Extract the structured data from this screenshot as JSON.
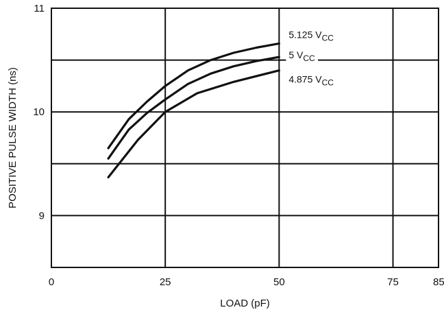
{
  "chart_data": {
    "type": "line",
    "xlabel": "LOAD (pF)",
    "ylabel": "POSITIVE PULSE WIDTH (ns)",
    "xlim": [
      0,
      85
    ],
    "ylim": [
      8.5,
      11
    ],
    "x_ticks": [
      0,
      25,
      50,
      75,
      85
    ],
    "y_ticks": [
      9,
      10,
      11
    ],
    "x_grid": [
      0,
      25,
      50,
      75,
      85
    ],
    "y_grid": [
      8.5,
      9,
      9.5,
      10,
      10.5,
      11
    ],
    "grid": true,
    "series": [
      {
        "name": "5.125 V",
        "subscript": "CC",
        "x": [
          12.5,
          17,
          21,
          25,
          30,
          35,
          40,
          45,
          50
        ],
        "y": [
          9.65,
          9.93,
          10.1,
          10.25,
          10.4,
          10.5,
          10.57,
          10.62,
          10.66
        ]
      },
      {
        "name": "5 V",
        "subscript": "CC",
        "x": [
          12.5,
          17,
          21,
          25,
          30,
          35,
          40,
          45,
          50
        ],
        "y": [
          9.55,
          9.83,
          9.99,
          10.12,
          10.27,
          10.37,
          10.44,
          10.49,
          10.53
        ]
      },
      {
        "name": "4.875 V",
        "subscript": "CC",
        "x": [
          12.5,
          19,
          25,
          32,
          40,
          50
        ],
        "y": [
          9.37,
          9.73,
          10.0,
          10.18,
          10.29,
          10.4
        ]
      }
    ]
  }
}
